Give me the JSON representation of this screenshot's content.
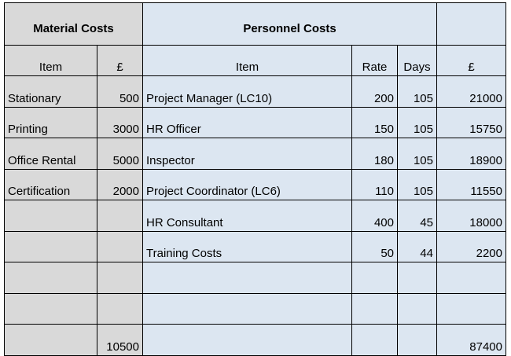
{
  "material": {
    "title": "Material Costs",
    "headers": {
      "item": "Item",
      "amount": "£"
    },
    "rows": [
      {
        "item": "Stationary",
        "amount": "500"
      },
      {
        "item": "Printing",
        "amount": "3000"
      },
      {
        "item": "Office Rental",
        "amount": "5000"
      },
      {
        "item": "Certification",
        "amount": "2000"
      },
      {
        "item": "",
        "amount": ""
      },
      {
        "item": "",
        "amount": ""
      },
      {
        "item": "",
        "amount": ""
      },
      {
        "item": "",
        "amount": ""
      }
    ],
    "total": "10500"
  },
  "personnel": {
    "title": "Personnel Costs",
    "headers": {
      "item": "Item",
      "rate": "Rate",
      "days": "Days",
      "amount": "£"
    },
    "rows": [
      {
        "item": "Project Manager (LC10)",
        "rate": "200",
        "days": "105",
        "amount": "21000"
      },
      {
        "item": "HR Officer",
        "rate": "150",
        "days": "105",
        "amount": "15750"
      },
      {
        "item": "Inspector",
        "rate": "180",
        "days": "105",
        "amount": "18900"
      },
      {
        "item": "Project Coordinator (LC6)",
        "rate": "110",
        "days": "105",
        "amount": "11550"
      },
      {
        "item": "HR Consultant",
        "rate": "400",
        "days": "45",
        "amount": "18000"
      },
      {
        "item": "Training Costs",
        "rate": "50",
        "days": "44",
        "amount": "2200"
      },
      {
        "item": "",
        "rate": "",
        "days": "",
        "amount": ""
      },
      {
        "item": "",
        "rate": "",
        "days": "",
        "amount": ""
      }
    ],
    "total": "87400"
  },
  "colors": {
    "material_bg": "#d9d9d9",
    "personnel_bg": "#dce6f1"
  }
}
